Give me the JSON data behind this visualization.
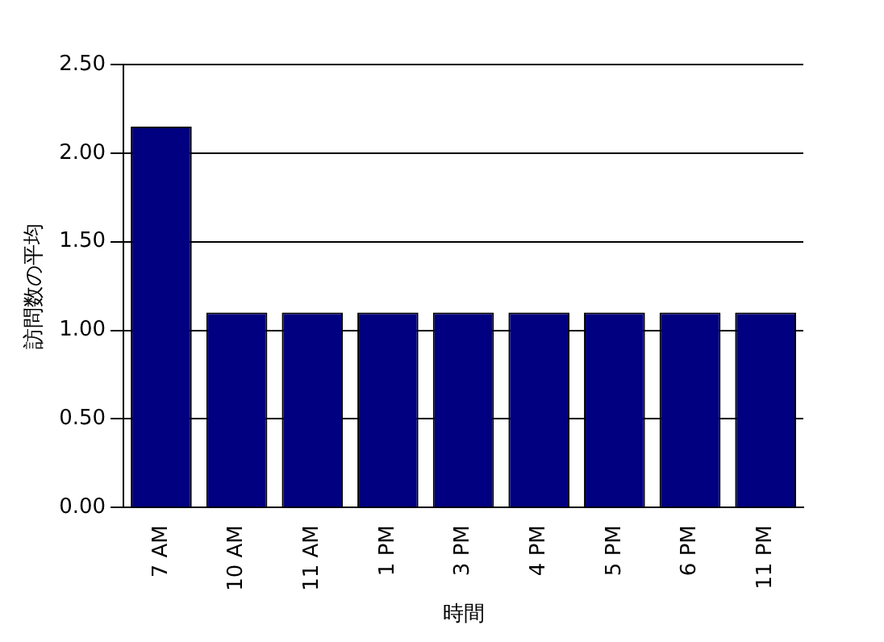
{
  "chart_data": {
    "type": "bar",
    "xlabel": "時間",
    "ylabel": "訪問数の平均",
    "categories": [
      "7 AM",
      "10 AM",
      "11 AM",
      "1 PM",
      "3 PM",
      "4 PM",
      "5 PM",
      "6 PM",
      "11 PM"
    ],
    "values": [
      2.15,
      1.1,
      1.1,
      1.1,
      1.1,
      1.1,
      1.1,
      1.1,
      1.1
    ],
    "color": "#000080",
    "ylim": [
      0,
      2.5
    ],
    "yticks": [
      {
        "value": 0,
        "label": "0.00"
      },
      {
        "value": 0.5,
        "label": "0.50"
      },
      {
        "value": 1,
        "label": "1.00"
      },
      {
        "value": 1.5,
        "label": "1.50"
      },
      {
        "value": 2,
        "label": "2.00"
      },
      {
        "value": 2.5,
        "label": "2.50"
      }
    ],
    "grid": "y",
    "legend": false
  }
}
